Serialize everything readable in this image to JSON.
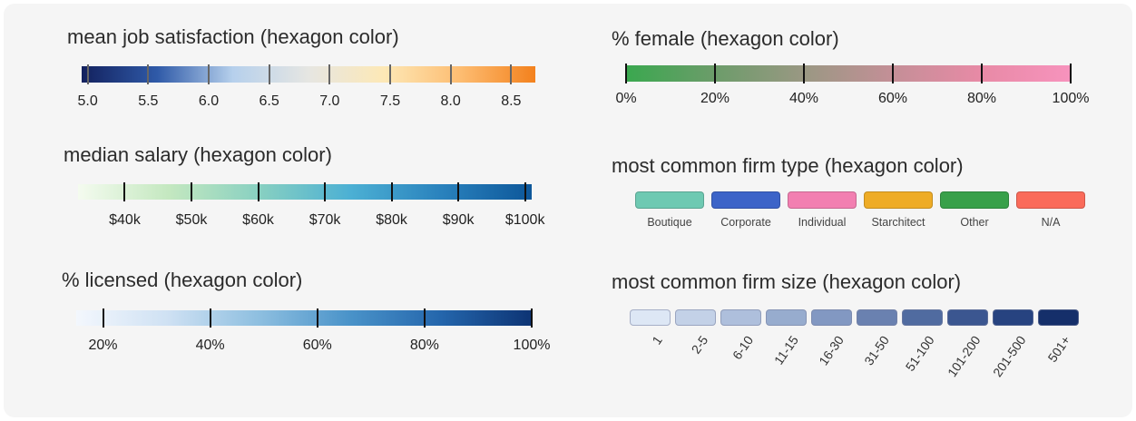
{
  "chart_data": [
    {
      "type": "legend-continuous",
      "title": "mean job satisfaction (hexagon color)",
      "range": [
        4.95,
        8.7
      ],
      "ticks": [
        {
          "value": 5.0,
          "label": "5.0"
        },
        {
          "value": 5.5,
          "label": "5.5"
        },
        {
          "value": 6.0,
          "label": "6.0"
        },
        {
          "value": 6.5,
          "label": "6.5"
        },
        {
          "value": 7.0,
          "label": "7.0"
        },
        {
          "value": 7.5,
          "label": "7.5"
        },
        {
          "value": 8.0,
          "label": "8.0"
        },
        {
          "value": 8.5,
          "label": "8.5"
        }
      ],
      "colors": [
        "#13215e",
        "#2f5aa8",
        "#b6d0ec",
        "#e6e6e2",
        "#fde8b6",
        "#fdbd72",
        "#f3811d"
      ],
      "tick_color": "#666666"
    },
    {
      "type": "legend-continuous",
      "title": "median salary (hexagon color)",
      "range": [
        33000,
        101000
      ],
      "ticks": [
        {
          "value": 40000,
          "label": "$40k"
        },
        {
          "value": 50000,
          "label": "$50k"
        },
        {
          "value": 60000,
          "label": "$60k"
        },
        {
          "value": 70000,
          "label": "$70k"
        },
        {
          "value": 80000,
          "label": "$80k"
        },
        {
          "value": 90000,
          "label": "$90k"
        },
        {
          "value": 100000,
          "label": "$100k"
        }
      ],
      "colors": [
        "#f4fbef",
        "#c4e8c0",
        "#88d0c1",
        "#4cb0d4",
        "#2a82bd",
        "#0d579a"
      ],
      "tick_color": "#111111"
    },
    {
      "type": "legend-continuous",
      "title": "% licensed (hexagon color)",
      "range": [
        15,
        100
      ],
      "ticks": [
        {
          "value": 20,
          "label": "20%"
        },
        {
          "value": 40,
          "label": "40%"
        },
        {
          "value": 60,
          "label": "60%"
        },
        {
          "value": 80,
          "label": "80%"
        },
        {
          "value": 100,
          "label": "100%"
        }
      ],
      "colors": [
        "#f3f7fd",
        "#cfe1f3",
        "#8ebfe0",
        "#4a93c9",
        "#2466ac",
        "#0d3474"
      ],
      "tick_color": "#111111"
    },
    {
      "type": "legend-continuous",
      "title": "% female (hexagon color)",
      "range": [
        0,
        100
      ],
      "ticks": [
        {
          "value": 0,
          "label": "0%"
        },
        {
          "value": 20,
          "label": "20%"
        },
        {
          "value": 40,
          "label": "40%"
        },
        {
          "value": 60,
          "label": "60%"
        },
        {
          "value": 80,
          "label": "80%"
        },
        {
          "value": 100,
          "label": "100%"
        }
      ],
      "colors": [
        "#3aa84f",
        "#6c9c6a",
        "#9a9883",
        "#c48f97",
        "#e88aa6",
        "#f793bd"
      ],
      "tick_color": "#111111"
    },
    {
      "type": "legend-categorical",
      "title": "most common firm type (hexagon color)",
      "categories": [
        {
          "label": "Boutique",
          "color": "#6ec9b2"
        },
        {
          "label": "Corporate",
          "color": "#3c64c8"
        },
        {
          "label": "Individual",
          "color": "#f27fb1"
        },
        {
          "label": "Starchitect",
          "color": "#eeac26"
        },
        {
          "label": "Other",
          "color": "#38a04a"
        },
        {
          "label": "N/A",
          "color": "#fa6b5a"
        }
      ]
    },
    {
      "type": "legend-ordinal",
      "title": "most common firm size (hexagon color)",
      "categories": [
        {
          "label": "1",
          "color": "#dde7f5"
        },
        {
          "label": "2-5",
          "color": "#c3d1e7"
        },
        {
          "label": "6-10",
          "color": "#aebfdc"
        },
        {
          "label": "11-15",
          "color": "#97acce"
        },
        {
          "label": "16-30",
          "color": "#8298c2"
        },
        {
          "label": "31-50",
          "color": "#6a81b0"
        },
        {
          "label": "51-100",
          "color": "#506ba0"
        },
        {
          "label": "101-200",
          "color": "#3b5690"
        },
        {
          "label": "201-500",
          "color": "#274380"
        },
        {
          "label": "501+",
          "color": "#152f6a"
        }
      ]
    }
  ]
}
